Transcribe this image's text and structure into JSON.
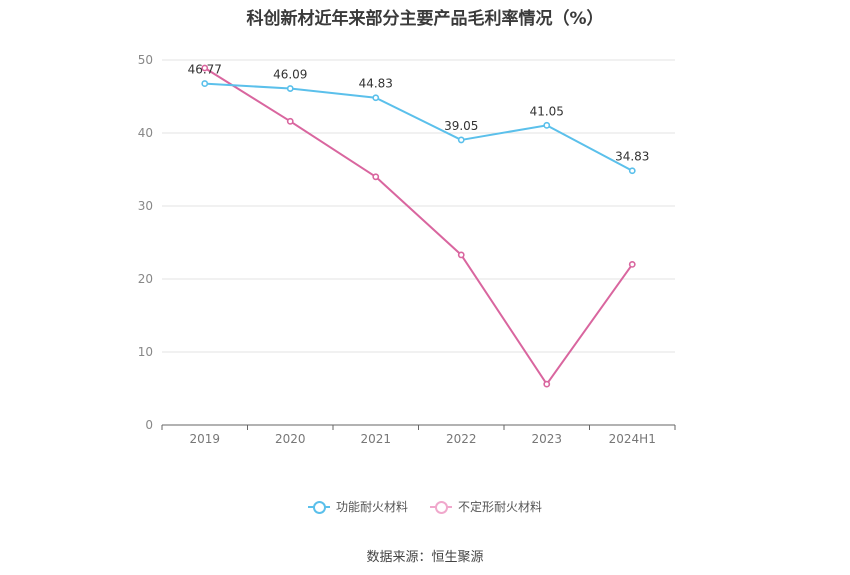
{
  "chart_data": {
    "type": "line",
    "title": "科创新材近年来部分主要产品毛利率情况（%）",
    "categories": [
      "2019",
      "2020",
      "2021",
      "2022",
      "2023",
      "2024H1"
    ],
    "ylim": [
      0,
      50
    ],
    "yticks": [
      0,
      10,
      20,
      30,
      40,
      50
    ],
    "grid": true,
    "legend_position": "bottom",
    "series": [
      {
        "name": "功能耐火材料",
        "color": "#5bc0eb",
        "values": [
          46.77,
          46.09,
          44.83,
          39.05,
          41.05,
          34.83
        ],
        "labels": [
          "46.77",
          "46.09",
          "44.83",
          "39.05",
          "41.05",
          "34.83"
        ]
      },
      {
        "name": "不定形耐火材料",
        "color": "#d9669f",
        "values": [
          48.9,
          41.6,
          34.0,
          23.3,
          5.6,
          22.0
        ]
      }
    ]
  },
  "legend": {
    "items": [
      {
        "label": "功能耐火材料",
        "color": "#5bc0eb"
      },
      {
        "label": "不定形耐火材料",
        "color": "#f0a8cc"
      }
    ]
  },
  "footer": {
    "source": "数据来源：恒生聚源"
  }
}
